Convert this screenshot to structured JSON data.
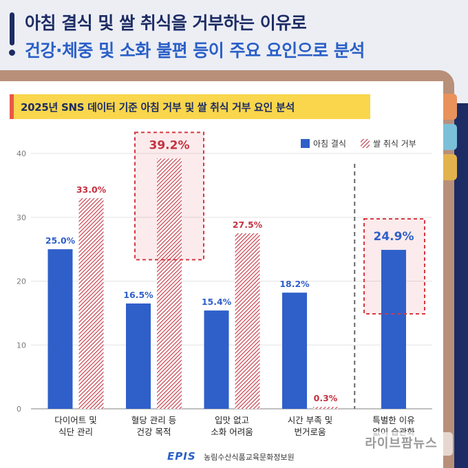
{
  "header": {
    "title_line1": "아침 결식 및 쌀 취식을 거부하는 이유로",
    "title_line2": "건강·체중 및 소화 불편 등이 주요 요인으로 분석"
  },
  "colors": {
    "navy": "#1d2c64",
    "blue": "#2f5fc9",
    "red": "#c4323f",
    "yellow": "#f9d64b"
  },
  "chart_data": {
    "type": "bar",
    "title": "2025년 SNS 데이터 기준 아침 거부 및 쌀 취식 거부 요인 분석",
    "xlabel": "",
    "ylabel": "",
    "ylim": [
      0,
      40
    ],
    "yticks": [
      0,
      10,
      20,
      30,
      40
    ],
    "grid": true,
    "legend_position": "top-right",
    "categories": [
      [
        "다이어트 및",
        "식단 관리"
      ],
      [
        "혈당 관리 등",
        "건강 목적"
      ],
      [
        "입맛 없고",
        "소화 어려움"
      ],
      [
        "시간 부족 및",
        "번거로움"
      ],
      [
        "특별한 이유",
        "없이 습관화"
      ]
    ],
    "series": [
      {
        "name": "아침 결식",
        "values": [
          25.0,
          16.5,
          15.4,
          18.2,
          24.9
        ],
        "labels": [
          "25.0%",
          "16.5%",
          "15.4%",
          "18.2%",
          "24.9%"
        ],
        "color": "#2f5fc9"
      },
      {
        "name": "쌀 취식 거부",
        "values": [
          33.0,
          39.2,
          27.5,
          0.3,
          null
        ],
        "labels": [
          "33.0%",
          "39.2%",
          "27.5%",
          "0.3%",
          ""
        ],
        "color": "#c4323f",
        "pattern": "hatched"
      }
    ],
    "highlights": [
      {
        "category_index": 1,
        "series_index": 1
      },
      {
        "category_index": 4,
        "series_index": 0
      }
    ]
  },
  "footer": {
    "logo": "EPIS",
    "org": "농림수산식품교육문화정보원",
    "watermark": "라이브팜뉴스"
  }
}
